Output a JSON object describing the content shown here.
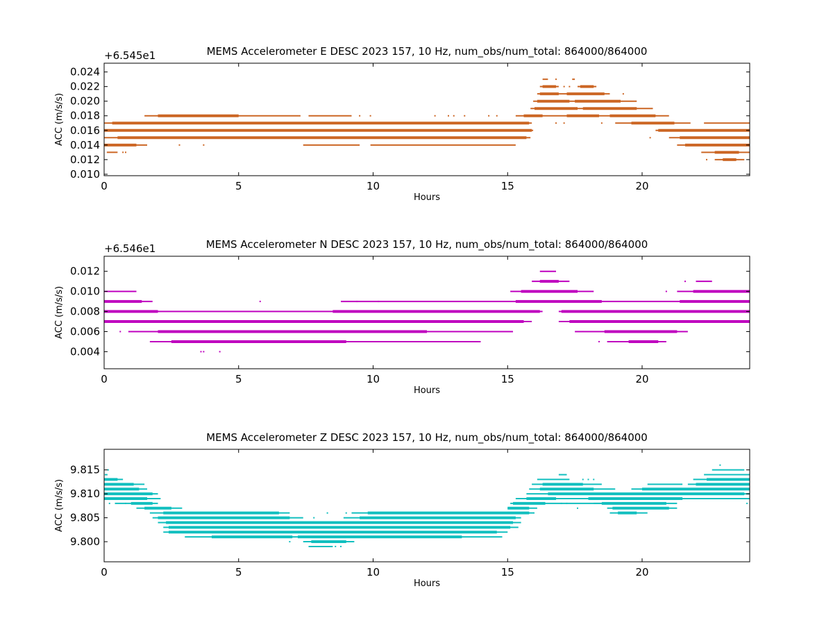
{
  "chart_data": [
    {
      "type": "scatter",
      "title": "MEMS Accelerometer E DESC 2023 157, 10 Hz, num_obs/num_total: 864000/864000",
      "ylabel": "ACC (m/s/s)",
      "xlabel": "Hours",
      "offset_text": "+6.545e1",
      "color": "#cc6624",
      "xlim": [
        0,
        24
      ],
      "ylim": [
        0.0098,
        0.0252
      ],
      "xticks": [
        0,
        5,
        10,
        15,
        20
      ],
      "xtick_labels": [
        "0",
        "5",
        "10",
        "15",
        "20"
      ],
      "yticks": [
        0.01,
        0.012,
        0.014,
        0.016,
        0.018,
        0.02,
        0.022,
        0.024
      ],
      "ytick_labels": [
        "0.010",
        "0.012",
        "0.014",
        "0.016",
        "0.018",
        "0.020",
        "0.022",
        "0.024"
      ],
      "grid": false,
      "series": [
        {
          "y": 0.023,
          "x": [
            [
              16.3,
              16.5
            ],
            [
              17.4,
              17.5
            ]
          ],
          "thick": [],
          "dots": [
            16.8
          ]
        },
        {
          "y": 0.022,
          "x": [
            [
              16.2,
              16.9
            ],
            [
              17.6,
              18.3
            ]
          ],
          "thick": [
            [
              16.3,
              16.8
            ],
            [
              17.7,
              18.2
            ]
          ],
          "dots": [
            17.1,
            17.3
          ]
        },
        {
          "y": 0.021,
          "x": [
            [
              16.1,
              18.8
            ]
          ],
          "thick": [
            [
              16.2,
              16.9
            ],
            [
              17.2,
              18.6
            ]
          ],
          "dots": [
            19.3
          ]
        },
        {
          "y": 0.02,
          "x": [
            [
              15.95,
              19.8
            ]
          ],
          "thick": [
            [
              16.1,
              17.3
            ],
            [
              17.5,
              19.2
            ]
          ],
          "dots": []
        },
        {
          "y": 0.019,
          "x": [
            [
              15.85,
              20.4
            ]
          ],
          "thick": [
            [
              16.0,
              17.6
            ],
            [
              17.8,
              19.8
            ]
          ],
          "dots": []
        },
        {
          "y": 0.018,
          "x": [
            [
              1.5,
              7.3
            ],
            [
              7.6,
              9.2
            ],
            [
              15.3,
              21.0
            ]
          ],
          "thick": [
            [
              2.0,
              5.0
            ],
            [
              15.6,
              16.3
            ],
            [
              17.2,
              18.4
            ],
            [
              18.8,
              20.5
            ]
          ],
          "dots": [
            9.5,
            9.9,
            12.3,
            12.8,
            13.0,
            13.4,
            14.3,
            14.6
          ]
        },
        {
          "y": 0.017,
          "x": [
            [
              0,
              15.9
            ],
            [
              19.0,
              21.8
            ],
            [
              22.3,
              24
            ]
          ],
          "thick": [
            [
              0.3,
              15.8
            ],
            [
              19.6,
              21.2
            ]
          ],
          "dots": [
            16.8,
            17.1,
            18.5,
            19.8
          ]
        },
        {
          "y": 0.016,
          "x": [
            [
              0,
              15.95
            ],
            [
              20.5,
              24
            ]
          ],
          "thick": [
            [
              0,
              15.9
            ],
            [
              20.6,
              24
            ]
          ],
          "dots": []
        },
        {
          "y": 0.015,
          "x": [
            [
              0,
              15.85
            ],
            [
              21.0,
              24
            ]
          ],
          "thick": [
            [
              0.5,
              15.7
            ],
            [
              21.4,
              24
            ]
          ],
          "dots": [
            20.3
          ]
        },
        {
          "y": 0.014,
          "x": [
            [
              0,
              1.6
            ],
            [
              7.4,
              9.5
            ],
            [
              9.9,
              15.3
            ],
            [
              21.3,
              24
            ]
          ],
          "thick": [
            [
              0,
              1.2
            ],
            [
              21.6,
              24
            ]
          ],
          "dots": [
            2.8,
            3.7
          ]
        },
        {
          "y": 0.013,
          "x": [
            [
              0.1,
              0.5
            ],
            [
              22.2,
              24
            ]
          ],
          "thick": [
            [
              22.7,
              23.6
            ]
          ],
          "dots": [
            0.7,
            0.8
          ]
        },
        {
          "y": 0.012,
          "x": [
            [
              22.7,
              23.8
            ]
          ],
          "thick": [
            [
              23.0,
              23.5
            ]
          ],
          "dots": [
            22.4
          ]
        }
      ]
    },
    {
      "type": "scatter",
      "title": "MEMS Accelerometer N DESC 2023 157, 10 Hz, num_obs/num_total: 864000/864000",
      "ylabel": "ACC (m/s/s)",
      "xlabel": "Hours",
      "offset_text": "+6.546e1",
      "color": "#bf00bf",
      "xlim": [
        0,
        24
      ],
      "ylim": [
        0.0023,
        0.0135
      ],
      "xticks": [
        0,
        5,
        10,
        15,
        20
      ],
      "xtick_labels": [
        "0",
        "5",
        "10",
        "15",
        "20"
      ],
      "yticks": [
        0.004,
        0.006,
        0.008,
        0.01,
        0.012
      ],
      "ytick_labels": [
        "0.004",
        "0.006",
        "0.008",
        "0.010",
        "0.012"
      ],
      "grid": false,
      "series": [
        {
          "y": 0.012,
          "x": [
            [
              16.2,
              16.8
            ]
          ],
          "thick": [],
          "dots": []
        },
        {
          "y": 0.011,
          "x": [
            [
              15.9,
              17.3
            ],
            [
              22.0,
              22.6
            ]
          ],
          "thick": [
            [
              16.2,
              16.9
            ]
          ],
          "dots": [
            21.6
          ]
        },
        {
          "y": 0.01,
          "x": [
            [
              0,
              1.2
            ],
            [
              15.1,
              18.2
            ],
            [
              21.3,
              24
            ]
          ],
          "thick": [
            [
              15.5,
              17.6
            ],
            [
              21.9,
              24
            ]
          ],
          "dots": [
            20.9
          ]
        },
        {
          "y": 0.009,
          "x": [
            [
              0,
              1.8
            ],
            [
              8.8,
              24
            ]
          ],
          "thick": [
            [
              0,
              1.4
            ],
            [
              15.3,
              18.5
            ],
            [
              21.4,
              24
            ]
          ],
          "dots": [
            5.8,
            9.4,
            10.2
          ]
        },
        {
          "y": 0.008,
          "x": [
            [
              0,
              16.3
            ],
            [
              16.9,
              24
            ]
          ],
          "thick": [
            [
              0,
              2.0
            ],
            [
              8.5,
              16.2
            ],
            [
              17.0,
              24
            ]
          ],
          "dots": []
        },
        {
          "y": 0.007,
          "x": [
            [
              0,
              15.9
            ],
            [
              16.9,
              24
            ]
          ],
          "thick": [
            [
              0,
              15.6
            ],
            [
              17.3,
              24
            ]
          ],
          "dots": []
        },
        {
          "y": 0.006,
          "x": [
            [
              0.9,
              15.2
            ],
            [
              17.5,
              21.7
            ]
          ],
          "thick": [
            [
              2.0,
              12.0
            ],
            [
              18.6,
              21.3
            ]
          ],
          "dots": [
            0.6,
            17.8
          ]
        },
        {
          "y": 0.005,
          "x": [
            [
              1.7,
              14.0
            ],
            [
              18.7,
              20.9
            ]
          ],
          "thick": [
            [
              2.5,
              9.0
            ],
            [
              19.5,
              20.6
            ]
          ],
          "dots": [
            18.4
          ]
        },
        {
          "y": 0.004,
          "x": [],
          "thick": [],
          "dots": [
            3.6,
            3.7,
            4.3
          ]
        }
      ]
    },
    {
      "type": "scatter",
      "title": "MEMS Accelerometer Z DESC 2023 157, 10 Hz, num_obs/num_total: 864000/864000",
      "ylabel": "ACC (m/s/s)",
      "xlabel": "Hours",
      "offset_text": "",
      "color": "#11bfbf",
      "xlim": [
        0,
        24
      ],
      "ylim": [
        9.7958,
        9.8193
      ],
      "xticks": [
        0,
        5,
        10,
        15,
        20
      ],
      "xtick_labels": [
        "0",
        "5",
        "10",
        "15",
        "20"
      ],
      "yticks": [
        9.8,
        9.805,
        9.81,
        9.815
      ],
      "ytick_labels": [
        "9.800",
        "9.805",
        "9.810",
        "9.815"
      ],
      "grid": false,
      "series": [
        {
          "y": 9.816,
          "x": [],
          "thick": [],
          "dots": [
            22.9
          ]
        },
        {
          "y": 9.815,
          "x": [
            [
              22.6,
              23.8
            ]
          ],
          "thick": [],
          "dots": [
            0.15
          ]
        },
        {
          "y": 9.814,
          "x": [
            [
              16.9,
              17.2
            ],
            [
              22.3,
              24
            ]
          ],
          "thick": [],
          "dots": [
            0.05,
            0.1
          ]
        },
        {
          "y": 9.813,
          "x": [
            [
              0,
              0.7
            ],
            [
              16.1,
              17.3
            ],
            [
              21.9,
              24
            ]
          ],
          "thick": [
            [
              0,
              0.5
            ],
            [
              22.4,
              24
            ]
          ],
          "dots": [
            17.8,
            18.0,
            18.2
          ]
        },
        {
          "y": 9.812,
          "x": [
            [
              0,
              1.5
            ],
            [
              15.9,
              18.5
            ],
            [
              20.2,
              21.5
            ],
            [
              21.7,
              24
            ]
          ],
          "thick": [
            [
              0,
              1.1
            ],
            [
              16.3,
              17.8
            ],
            [
              22.0,
              24
            ]
          ],
          "dots": []
        },
        {
          "y": 9.811,
          "x": [
            [
              0,
              1.6
            ],
            [
              15.8,
              19.0
            ],
            [
              19.6,
              24
            ]
          ],
          "thick": [
            [
              0,
              1.3
            ],
            [
              16.2,
              18.2
            ],
            [
              20.0,
              24
            ]
          ],
          "dots": []
        },
        {
          "y": 9.81,
          "x": [
            [
              0,
              2.0
            ],
            [
              15.7,
              24
            ]
          ],
          "thick": [
            [
              0,
              1.8
            ],
            [
              16.5,
              23.8
            ]
          ],
          "dots": []
        },
        {
          "y": 9.809,
          "x": [
            [
              0,
              2.1
            ],
            [
              15.3,
              24
            ]
          ],
          "thick": [
            [
              0,
              1.6
            ],
            [
              15.7,
              16.8
            ],
            [
              18.0,
              21.5
            ]
          ],
          "dots": []
        },
        {
          "y": 9.808,
          "x": [
            [
              0.4,
              2.0
            ],
            [
              15.1,
              19.8
            ],
            [
              18.2,
              21.3
            ]
          ],
          "thick": [
            [
              1.0,
              1.8
            ],
            [
              15.2,
              16.4
            ],
            [
              18.5,
              20.9
            ]
          ],
          "dots": [
            0.2,
            0.8,
            17.0,
            17.2,
            23.9
          ]
        },
        {
          "y": 9.807,
          "x": [
            [
              1.2,
              2.9
            ],
            [
              15.0,
              16.1
            ],
            [
              18.7,
              21.3
            ]
          ],
          "thick": [
            [
              1.5,
              2.5
            ],
            [
              15.0,
              15.8
            ],
            [
              18.9,
              21.0
            ]
          ],
          "dots": [
            17.6
          ]
        },
        {
          "y": 9.806,
          "x": [
            [
              1.7,
              6.9
            ],
            [
              9.2,
              16.0
            ],
            [
              18.8,
              20.2
            ]
          ],
          "thick": [
            [
              2.2,
              6.5
            ],
            [
              9.8,
              15.8
            ],
            [
              19.1,
              19.8
            ]
          ],
          "dots": [
            8.3,
            9.0,
            15.8
          ]
        },
        {
          "y": 9.805,
          "x": [
            [
              1.8,
              7.4
            ],
            [
              8.9,
              15.5
            ]
          ],
          "thick": [
            [
              2.0,
              6.9
            ],
            [
              9.5,
              15.3
            ]
          ],
          "dots": [
            7.8
          ]
        },
        {
          "y": 9.804,
          "x": [
            [
              2.0,
              15.5
            ]
          ],
          "thick": [
            [
              2.3,
              15.2
            ]
          ],
          "dots": []
        },
        {
          "y": 9.803,
          "x": [
            [
              2.2,
              15.4
            ]
          ],
          "thick": [
            [
              2.4,
              15.1
            ]
          ],
          "dots": []
        },
        {
          "y": 9.802,
          "x": [
            [
              2.2,
              15.0
            ]
          ],
          "thick": [
            [
              2.4,
              14.6
            ]
          ],
          "dots": []
        },
        {
          "y": 9.801,
          "x": [
            [
              3.0,
              14.8
            ]
          ],
          "thick": [
            [
              4.0,
              7.0
            ],
            [
              7.2,
              13.3
            ]
          ],
          "dots": []
        },
        {
          "y": 9.8,
          "x": [
            [
              7.4,
              9.3
            ]
          ],
          "thick": [
            [
              7.7,
              9.0
            ]
          ],
          "dots": [
            6.9
          ]
        },
        {
          "y": 9.799,
          "x": [
            [
              7.6,
              8.5
            ]
          ],
          "thick": [],
          "dots": [
            8.6,
            8.8
          ]
        }
      ]
    }
  ]
}
